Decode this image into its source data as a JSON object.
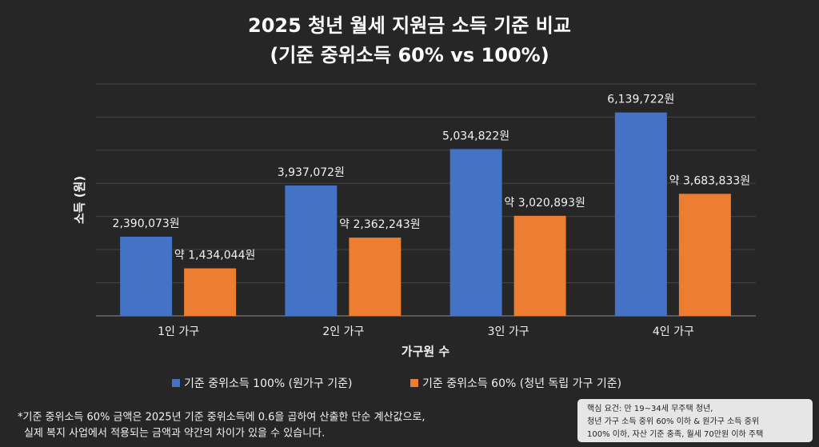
{
  "chart_data": {
    "type": "bar",
    "title": "2025 청년 월세 지원금 소득 기준 비교",
    "subtitle": "(기준 중위소득 60% vs 100%)",
    "x_label": "가구원 수",
    "y_label": "소득 (원)",
    "categories": [
      "1인 가구",
      "2인 가구",
      "3인 가구",
      "4인 가구"
    ],
    "series": [
      {
        "name": "기준 중위소득 100% (원가구 기준)",
        "color": "#4472c4",
        "values": [
          2390073,
          3937072,
          5034822,
          6139722
        ],
        "value_labels": [
          "2,390,073원",
          "3,937,072원",
          "5,034,822원",
          "6,139,722원"
        ]
      },
      {
        "name": "기준 중위소득 60% (청년 독립 가구 기준)",
        "color": "#ed7d31",
        "values": [
          1434044,
          2362243,
          3020893,
          3683833
        ],
        "value_labels": [
          "약 1,434,044원",
          "약 2,362,243원",
          "약 3,020,893원",
          "약 3,683,833원"
        ]
      }
    ],
    "ylim": [
      0,
      7000000
    ],
    "yticks": [
      0,
      1000000,
      2000000,
      3000000,
      4000000,
      5000000,
      6000000,
      7000000
    ],
    "grid": true,
    "legend": "bottom",
    "footnote": [
      "*기준 중위소득 60% 금액은 2025년 기준 중위소득에 0.6을 곱하여 산출한 단순 계산값으로,",
      "실제 복지 사업에서 적용되는 금액과 약간의 차이가 있을 수 있습니다."
    ],
    "note": [
      "핵심 요건: 만 19~34세 무주택 청년,",
      "청년 가구 소득 중위 60% 이하 & 원가구 소득 중위",
      "100% 이하, 자산 기준 충족, 월세 70만원 이하 주택"
    ]
  }
}
